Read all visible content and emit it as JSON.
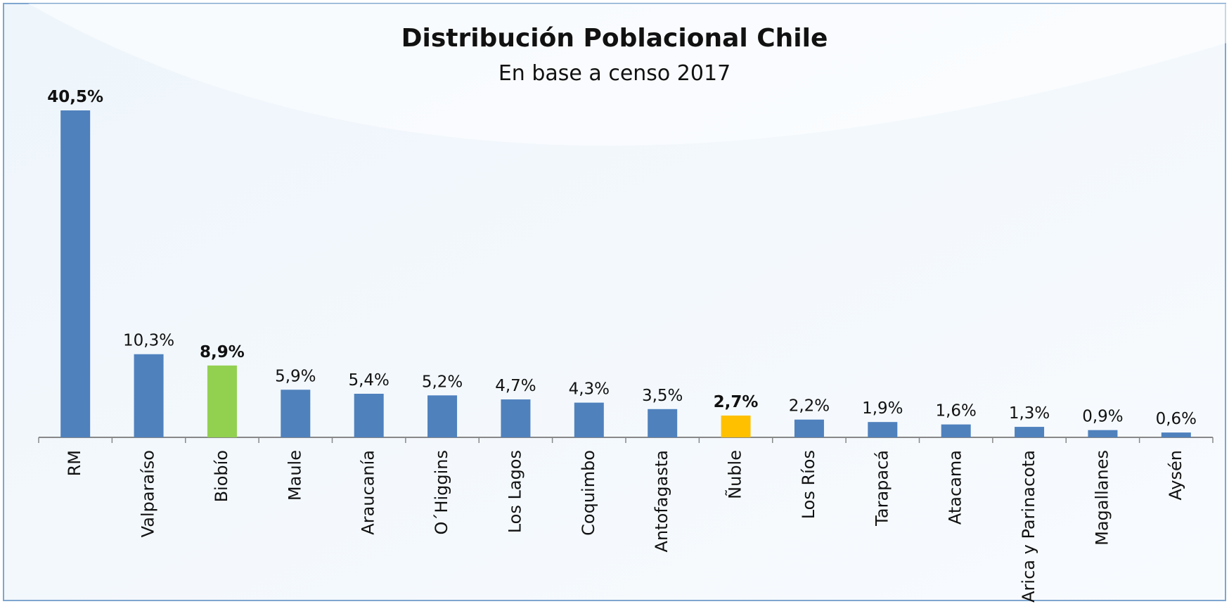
{
  "chart_data": {
    "type": "bar",
    "title": "Distribución Poblacional Chile",
    "subtitle": "En base a censo 2017",
    "categories": [
      "RM",
      "Valparaíso",
      "Biobío",
      "Maule",
      "Araucanía",
      "O´Higgins",
      "Los Lagos",
      "Coquimbo",
      "Antofagasta",
      "Ñuble",
      "Los Ríos",
      "Tarapacá",
      "Atacama",
      "Arica y Parinacota",
      "Magallanes",
      "Aysén"
    ],
    "values": [
      40.5,
      10.3,
      8.9,
      5.9,
      5.4,
      5.2,
      4.7,
      4.3,
      3.5,
      2.7,
      2.2,
      1.9,
      1.6,
      1.3,
      0.9,
      0.6
    ],
    "value_labels": [
      "40,5%",
      "10,3%",
      "8,9%",
      "5,9%",
      "5,4%",
      "5,2%",
      "4,7%",
      "4,3%",
      "3,5%",
      "2,7%",
      "2,2%",
      "1,9%",
      "1,6%",
      "1,3%",
      "0,9%",
      "0,6%"
    ],
    "colors": [
      "#4f81bd",
      "#4f81bd",
      "#92d050",
      "#4f81bd",
      "#4f81bd",
      "#4f81bd",
      "#4f81bd",
      "#4f81bd",
      "#4f81bd",
      "#ffc000",
      "#4f81bd",
      "#4f81bd",
      "#4f81bd",
      "#4f81bd",
      "#4f81bd",
      "#4f81bd"
    ]
  }
}
